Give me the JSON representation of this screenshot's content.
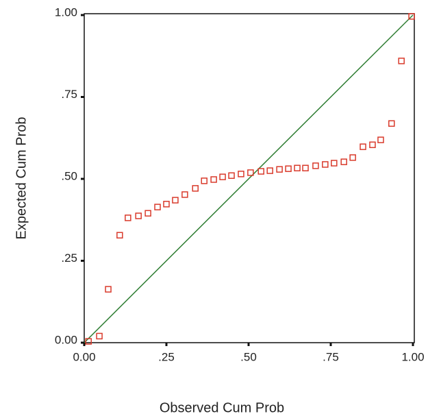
{
  "chart_data": {
    "type": "scatter",
    "xlabel": "Observed Cum Prob",
    "ylabel": "Expected Cum Prob",
    "xlim": [
      0,
      1
    ],
    "ylim": [
      0,
      1
    ],
    "xticks": [
      {
        "value": 0,
        "label": "0.00"
      },
      {
        "value": 0.25,
        "label": ".25"
      },
      {
        "value": 0.5,
        "label": ".50"
      },
      {
        "value": 0.75,
        "label": ".75"
      },
      {
        "value": 1,
        "label": "1.00"
      }
    ],
    "yticks": [
      {
        "value": 0,
        "label": "0.00"
      },
      {
        "value": 0.25,
        "label": ".25"
      },
      {
        "value": 0.5,
        "label": ".50"
      },
      {
        "value": 0.75,
        "label": ".75"
      },
      {
        "value": 1,
        "label": "1.00"
      }
    ],
    "reference_line": true,
    "reference_color": "#2e7d32",
    "color": "#d93a2b",
    "x": [
      0.013,
      0.046,
      0.073,
      0.108,
      0.133,
      0.165,
      0.194,
      0.223,
      0.25,
      0.277,
      0.306,
      0.338,
      0.365,
      0.394,
      0.421,
      0.448,
      0.477,
      0.506,
      0.538,
      0.565,
      0.594,
      0.621,
      0.648,
      0.673,
      0.704,
      0.733,
      0.76,
      0.79,
      0.817,
      0.848,
      0.877,
      0.902,
      0.935,
      0.965,
      0.996
    ],
    "values": [
      0.004,
      0.02,
      0.163,
      0.328,
      0.381,
      0.387,
      0.395,
      0.414,
      0.423,
      0.435,
      0.452,
      0.471,
      0.494,
      0.498,
      0.506,
      0.51,
      0.515,
      0.519,
      0.523,
      0.525,
      0.529,
      0.531,
      0.533,
      0.533,
      0.54,
      0.544,
      0.548,
      0.552,
      0.565,
      0.598,
      0.604,
      0.619,
      0.669,
      0.86,
      0.996
    ]
  }
}
